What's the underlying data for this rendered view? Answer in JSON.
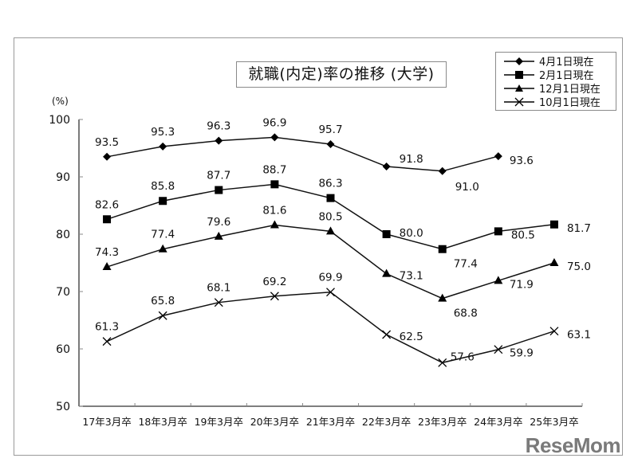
{
  "chart_data": {
    "type": "line",
    "title": "就職(内定)率の推移 (大学)",
    "xlabel": "",
    "ylabel": "(%)",
    "ylim": [
      50,
      100
    ],
    "yticks": [
      50,
      60,
      70,
      80,
      90,
      100
    ],
    "grid": false,
    "legend_position": "top-right",
    "categories": [
      "17年3月卒",
      "18年3月卒",
      "19年3月卒",
      "20年3月卒",
      "21年3月卒",
      "22年3月卒",
      "23年3月卒",
      "24年3月卒",
      "25年3月卒"
    ],
    "series": [
      {
        "name": "4月1日現在",
        "marker": "diamond",
        "values": [
          93.5,
          95.3,
          96.3,
          96.9,
          95.7,
          91.8,
          91.0,
          93.6,
          null
        ]
      },
      {
        "name": "2月1日現在",
        "marker": "square",
        "values": [
          82.6,
          85.8,
          87.7,
          88.7,
          86.3,
          80.0,
          77.4,
          80.5,
          81.7
        ]
      },
      {
        "name": "12月1日現在",
        "marker": "triangle",
        "values": [
          74.3,
          77.4,
          79.6,
          81.6,
          80.5,
          73.1,
          68.8,
          71.9,
          75.0
        ]
      },
      {
        "name": "10月1日現在",
        "marker": "x",
        "values": [
          61.3,
          65.8,
          68.1,
          69.2,
          69.9,
          62.5,
          57.6,
          59.9,
          63.1
        ]
      }
    ]
  },
  "header": {
    "title": "就職(内定)率の推移 (大学)",
    "unit": "(%)"
  },
  "legend": {
    "items": [
      "4月1日現在",
      "2月1日現在",
      "12月1日現在",
      "10月1日現在"
    ]
  },
  "watermark": "ReseMom"
}
